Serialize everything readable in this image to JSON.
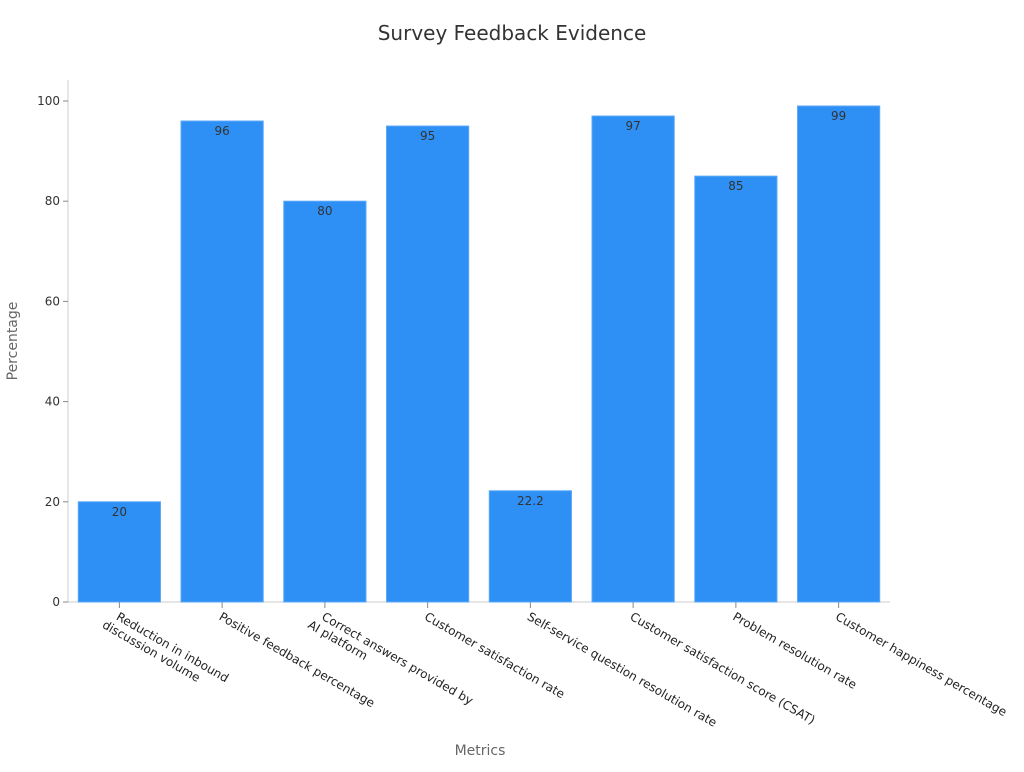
{
  "chart_data": {
    "type": "bar",
    "title": "Survey Feedback Evidence",
    "xlabel": "Metrics",
    "ylabel": "Percentage",
    "ylim": [
      0,
      104
    ],
    "yticks": [
      0,
      20,
      40,
      60,
      80,
      100
    ],
    "grid": false,
    "bar_color": "#2e90f5",
    "categories": [
      [
        "Reduction in inbound",
        "discussion volume"
      ],
      [
        "Positive feedback percentage"
      ],
      [
        "Correct answers provided by",
        "AI platform"
      ],
      [
        "Customer satisfaction rate"
      ],
      [
        "Self-service question resolution rate"
      ],
      [
        "Customer satisfaction score (CSAT)"
      ],
      [
        "Problem resolution rate"
      ],
      [
        "Customer happiness percentage"
      ]
    ],
    "values": [
      20,
      96,
      80,
      95,
      22.2,
      97,
      85,
      99
    ]
  }
}
